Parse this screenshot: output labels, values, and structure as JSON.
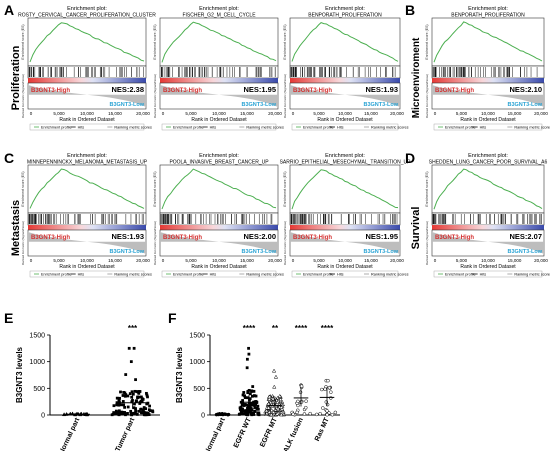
{
  "figure": {
    "panel_labels": [
      "A",
      "B",
      "C",
      "D",
      "E",
      "F"
    ],
    "row_labels": {
      "A": "Proliferation",
      "B": "Microenviroment",
      "C": "Metastasis",
      "D": "Survival"
    },
    "gsea_common": {
      "title_prefix": "Enrichment plot:",
      "high_label": "B3GNT3-High",
      "low_label": "B3GNT3-Low",
      "xlabel": "Rank in Ordered Dataset",
      "ylabel_top": "Enrichment score (ES)",
      "ylabel_bottom": "Ranked list metric (Signal2Noise)",
      "xticks": [
        "0",
        "5,000",
        "10,000",
        "15,000",
        "20,000"
      ],
      "legend": [
        "Enrichment profile",
        "Hits",
        "Ranking metric scores"
      ]
    },
    "gsea_plots": [
      {
        "title": "ROSTY_CERVICAL_CANCER_PROLIFERATION_CLUSTER",
        "nes": "NES:2.38"
      },
      {
        "title": "FISCHER_G2_M_CELL_CYCLE",
        "nes": "NES:1.95"
      },
      {
        "title": "BENPORATH_PROLIFERATION",
        "nes": "NES:1.93"
      },
      {
        "title": "BENPORATH_PROLIFERATION",
        "nes": "NES:2.10"
      },
      {
        "title": "MINNEPENNINCKX_MELANOMA_METASTASIS_UP",
        "nes": "NES:1.93"
      },
      {
        "title": "POOLA_INVASIVE_BREAST_CANCER_UP",
        "nes": "NES:2.00"
      },
      {
        "title": "SARRIO_EPITHELIAL_MESECHYMAL_TRANSITION_UP",
        "nes": "NES:1.95"
      },
      {
        "title": "SHEDDEN_LUNG_CANCER_POOR_SURVIVAL_A6",
        "nes": "NES:2.07"
      }
    ]
  },
  "chart_data": [
    {
      "type": "scatter",
      "panel": "E",
      "ylabel": "B3GNT3 levels",
      "ylim": [
        0,
        1500
      ],
      "yticks": [
        "0",
        "500",
        "1000",
        "1500"
      ],
      "categories": [
        "Normal part",
        "Tumor part"
      ],
      "significance": [
        "",
        "***"
      ],
      "series": [
        {
          "values_summary": {
            "median": 15,
            "max": 40
          }
        },
        {
          "values_summary": {
            "median": 230,
            "max": 1250
          }
        }
      ]
    },
    {
      "type": "scatter",
      "panel": "F",
      "ylabel": "B3GNT3 levels",
      "ylim": [
        0,
        1500
      ],
      "yticks": [
        "0",
        "500",
        "1000",
        "1500"
      ],
      "categories": [
        "Normal part",
        "EGFR WT",
        "EGFR MT",
        "ALK fusion",
        "Ras MT"
      ],
      "significance": [
        "",
        "****",
        "**",
        "****",
        "****"
      ],
      "series": [
        {
          "values_summary": {
            "median": 15,
            "max": 40
          }
        },
        {
          "values_summary": {
            "median": 240,
            "max": 1250
          }
        },
        {
          "values_summary": {
            "median": 180,
            "max": 850
          }
        },
        {
          "values_summary": {
            "median": 320,
            "max": 560
          }
        },
        {
          "values_summary": {
            "median": 330,
            "max": 1000
          }
        }
      ]
    }
  ]
}
